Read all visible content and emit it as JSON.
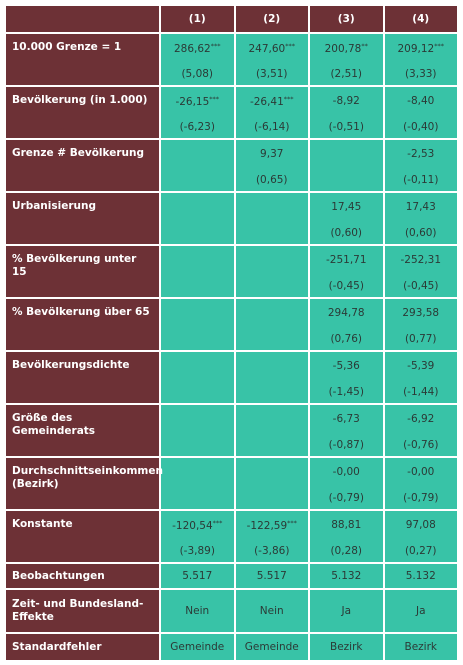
{
  "header": {
    "columns": [
      "(1)",
      "(2)",
      "(3)",
      "(4)"
    ]
  },
  "rows": [
    {
      "label": "10.000 Grenze = 1",
      "cells": [
        {
          "coef": "286,62",
          "stars": "***",
          "se": "(5,08)"
        },
        {
          "coef": "247,60",
          "stars": "***",
          "se": "(3,51)"
        },
        {
          "coef": "200,78",
          "stars": "**",
          "se": "(2,51)"
        },
        {
          "coef": "209,12",
          "stars": "***",
          "se": "(3,33)"
        }
      ]
    },
    {
      "label": "Bevölkerung (in 1.000)",
      "cells": [
        {
          "coef": "-26,15",
          "stars": "***",
          "se": "(-6,23)"
        },
        {
          "coef": "-26,41",
          "stars": "***",
          "se": "(-6,14)"
        },
        {
          "coef": "-8,92",
          "se": "(-0,51)"
        },
        {
          "coef": "-8,40",
          "se": "(-0,40)"
        }
      ]
    },
    {
      "label": "Grenze # Bevölkerung",
      "cells": [
        null,
        {
          "coef": "9,37",
          "se": "(0,65)"
        },
        null,
        {
          "coef": "-2,53",
          "se": "(-0,11)"
        }
      ]
    },
    {
      "label": "Urbanisierung",
      "cells": [
        null,
        null,
        {
          "coef": "17,45",
          "se": "(0,60)"
        },
        {
          "coef": "17,43",
          "se": "(0,60)"
        }
      ]
    },
    {
      "label": "% Bevölkerung unter 15",
      "cells": [
        null,
        null,
        {
          "coef": "-251,71",
          "se": "(-0,45)"
        },
        {
          "coef": "-252,31",
          "se": "(-0,45)"
        }
      ]
    },
    {
      "label": "% Bevölkerung über 65",
      "cells": [
        null,
        null,
        {
          "coef": "294,78",
          "se": "(0,76)"
        },
        {
          "coef": "293,58",
          "se": "(0,77)"
        }
      ]
    },
    {
      "label": "Bevölkerungsdichte",
      "cells": [
        null,
        null,
        {
          "coef": "-5,36",
          "se": "(-1,45)"
        },
        {
          "coef": "-5,39",
          "se": "(-1,44)"
        }
      ]
    },
    {
      "label": "Größe des Gemeinderats",
      "cells": [
        null,
        null,
        {
          "coef": "-6,73",
          "se": "(-0,87)"
        },
        {
          "coef": "-6,92",
          "se": "(-0,76)"
        }
      ]
    },
    {
      "label": "Durchschnittseinkommen (Bezirk)",
      "cells": [
        null,
        null,
        {
          "coef": "-0,00",
          "se": "(-0,79)"
        },
        {
          "coef": "-0,00",
          "se": "(-0,79)"
        }
      ]
    },
    {
      "label": "Konstante",
      "cells": [
        {
          "coef": "-120,54",
          "stars": "***",
          "se": "(-3,89)"
        },
        {
          "coef": "-122,59",
          "stars": "***",
          "se": "(-3,86)"
        },
        {
          "coef": "88,81",
          "se": "(0,28)"
        },
        {
          "coef": "97,08",
          "se": "(0,27)"
        }
      ]
    }
  ],
  "footer": [
    {
      "label": "Beobachtungen",
      "cells": [
        "5.517",
        "5.517",
        "5.132",
        "5.132"
      ]
    },
    {
      "label": "Zeit- und Bundesland-Effekte",
      "cells": [
        "Nein",
        "Nein",
        "Ja",
        "Ja"
      ]
    },
    {
      "label": "Standardfehler",
      "cells": [
        "Gemeinde",
        "Gemeinde",
        "Bezirk",
        "Bezirk"
      ]
    }
  ]
}
